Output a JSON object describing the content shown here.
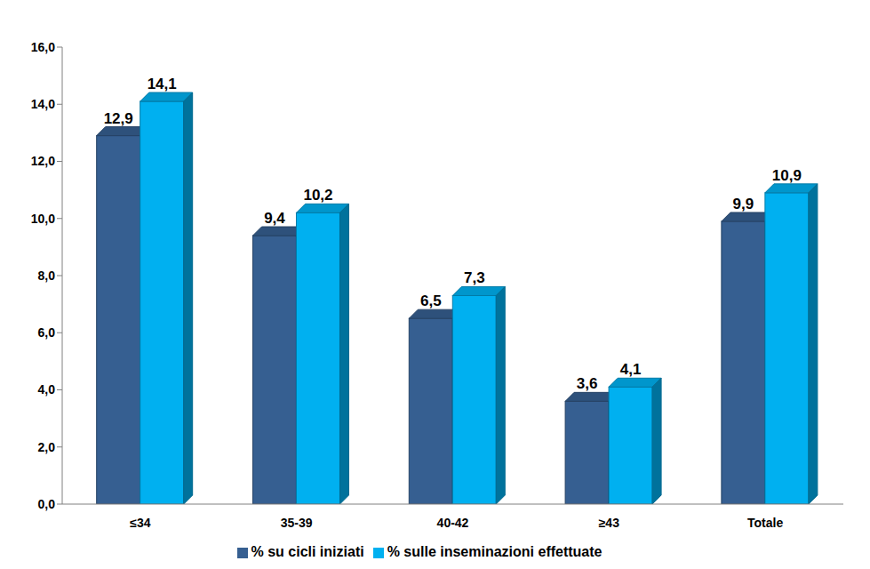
{
  "chart_data": {
    "type": "bar",
    "categories": [
      "≤34",
      "35-39",
      "40-42",
      "≥43",
      "Totale"
    ],
    "series": [
      {
        "name": "% su cicli iniziati",
        "color": "#365f91",
        "values": [
          12.9,
          9.4,
          6.5,
          3.6,
          9.9
        ],
        "value_labels": [
          "12,9",
          "9,4",
          "6,5",
          "3,6",
          "9,9"
        ]
      },
      {
        "name": "% sulle inseminazioni effettuate",
        "color": "#00b0f0",
        "values": [
          14.1,
          10.2,
          7.3,
          4.1,
          10.9
        ],
        "value_labels": [
          "14,1",
          "10,2",
          "7,3",
          "4,1",
          "10,9"
        ]
      }
    ],
    "ylim": [
      0,
      16
    ],
    "yticks": [
      {
        "value": 0,
        "label": "0,0"
      },
      {
        "value": 2,
        "label": "2,0"
      },
      {
        "value": 4,
        "label": "4,0"
      },
      {
        "value": 6,
        "label": "6,0"
      },
      {
        "value": 8,
        "label": "8,0"
      },
      {
        "value": 10,
        "label": "10,0"
      },
      {
        "value": 12,
        "label": "12,0"
      },
      {
        "value": 14,
        "label": "14,0"
      },
      {
        "value": 16,
        "label": "16,0"
      }
    ],
    "grid": false,
    "legend": "bottom",
    "data_labels": true
  }
}
